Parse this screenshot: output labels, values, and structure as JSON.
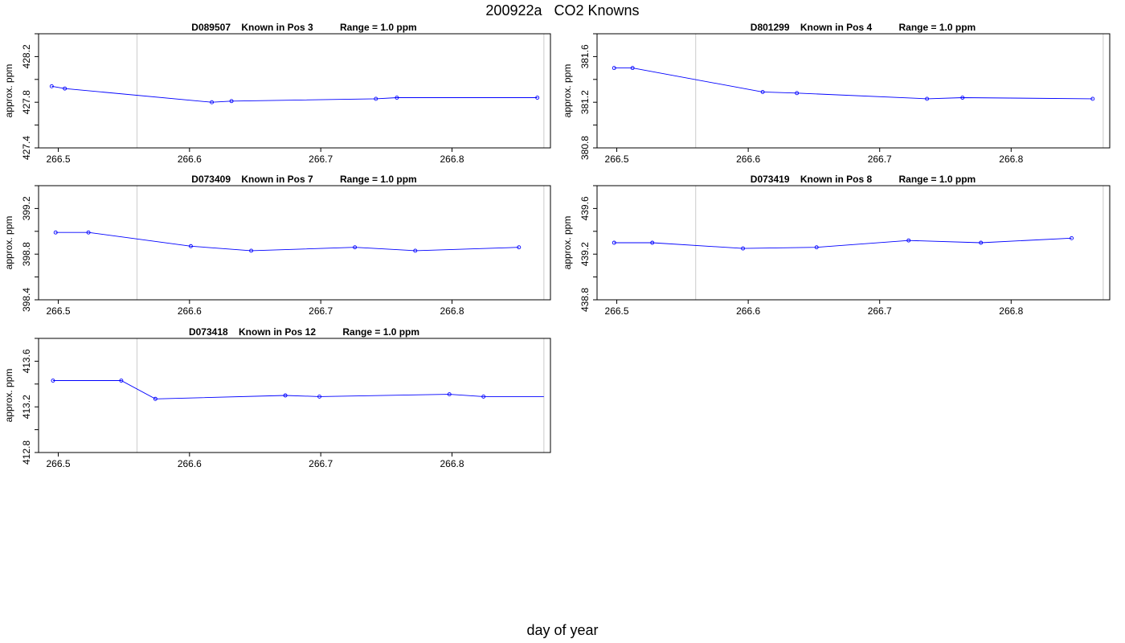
{
  "figure": {
    "title": "200922a   CO2 Knowns",
    "xlabel": "day of year"
  },
  "colors": {
    "series": "#0000ff",
    "frame": "#000000",
    "boundary": "#d3d3d3"
  },
  "chart_data": [
    {
      "type": "line",
      "title": "D089507    Known in Pos 3          Range = 1.0 ppm",
      "ylabel": "approx. ppm",
      "xlim": [
        266.485,
        266.875
      ],
      "ylim": [
        427.4,
        428.4
      ],
      "xticks": [
        "266.5",
        "266.6",
        "266.7",
        "266.8"
      ],
      "yticks": [
        "427.4",
        "427.8",
        "428.2"
      ],
      "boundaries": [
        266.56,
        266.87
      ],
      "x": [
        266.495,
        266.505,
        266.617,
        266.632,
        266.742,
        266.758,
        266.865
      ],
      "y": [
        427.94,
        427.92,
        427.8,
        427.81,
        427.83,
        427.84,
        427.84
      ]
    },
    {
      "type": "line",
      "title": "D801299    Known in Pos 4          Range = 1.0 ppm",
      "ylabel": "approx. ppm",
      "xlim": [
        266.485,
        266.875
      ],
      "ylim": [
        380.8,
        381.8
      ],
      "xticks": [
        "266.5",
        "266.6",
        "266.7",
        "266.8"
      ],
      "yticks": [
        "380.8",
        "381.2",
        "381.6"
      ],
      "boundaries": [
        266.56,
        266.87
      ],
      "x": [
        266.498,
        266.512,
        266.611,
        266.637,
        266.736,
        266.763,
        266.862
      ],
      "y": [
        381.5,
        381.5,
        381.29,
        381.28,
        381.23,
        381.24,
        381.23
      ]
    },
    {
      "type": "line",
      "title": "D073409    Known in Pos 7          Range = 1.0 ppm",
      "ylabel": "approx. ppm",
      "xlim": [
        266.485,
        266.875
      ],
      "ylim": [
        398.4,
        399.4
      ],
      "xticks": [
        "266.5",
        "266.6",
        "266.7",
        "266.8"
      ],
      "yticks": [
        "398.4",
        "398.8",
        "399.2"
      ],
      "boundaries": [
        266.56,
        266.87
      ],
      "x": [
        266.498,
        266.523,
        266.601,
        266.647,
        266.726,
        266.772,
        266.851
      ],
      "y": [
        398.99,
        398.99,
        398.87,
        398.83,
        398.86,
        398.83,
        398.86
      ]
    },
    {
      "type": "line",
      "title": "D073419    Known in Pos 8          Range = 1.0 ppm",
      "ylabel": "approx. ppm",
      "xlim": [
        266.485,
        266.875
      ],
      "ylim": [
        438.8,
        439.8
      ],
      "xticks": [
        "266.5",
        "266.6",
        "266.7",
        "266.8"
      ],
      "yticks": [
        "438.8",
        "439.2",
        "439.6"
      ],
      "boundaries": [
        266.56,
        266.87
      ],
      "x": [
        266.498,
        266.527,
        266.596,
        266.652,
        266.722,
        266.777,
        266.846
      ],
      "y": [
        439.3,
        439.3,
        439.25,
        439.26,
        439.32,
        439.3,
        439.34
      ]
    },
    {
      "type": "line",
      "title": "D073418    Known in Pos 12          Range = 1.0 ppm",
      "ylabel": "approx. ppm",
      "xlim": [
        266.485,
        266.875
      ],
      "ylim": [
        412.8,
        413.8
      ],
      "xticks": [
        "266.5",
        "266.6",
        "266.7",
        "266.8"
      ],
      "yticks": [
        "412.8",
        "413.2",
        "413.6"
      ],
      "boundaries": [
        266.56,
        266.87
      ],
      "x": [
        266.496,
        266.548,
        266.574,
        266.673,
        266.699,
        266.798,
        266.824,
        266.87
      ],
      "y": [
        413.43,
        413.43,
        413.27,
        413.3,
        413.29,
        413.31,
        413.29,
        413.29
      ]
    }
  ]
}
